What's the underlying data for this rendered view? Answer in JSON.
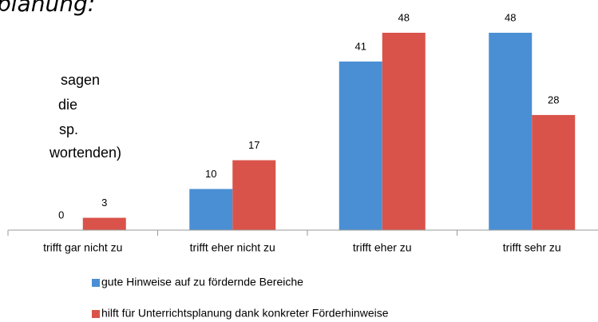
{
  "chart_data": {
    "type": "bar",
    "title": "planung:",
    "annotations": [
      "sagen",
      "die",
      "sp.",
      "wortenden)"
    ],
    "categories": [
      "trifft gar nicht zu",
      "trifft eher nicht zu",
      "trifft eher zu",
      "trifft sehr zu"
    ],
    "series": [
      {
        "name": "gute Hinweise auf zu fördernde Bereiche",
        "color": "#4a8fd4",
        "values": [
          0,
          10,
          41,
          48
        ]
      },
      {
        "name": "hilft für Unterrichtsplanung dank konkreter Förderhinweise",
        "color": "#d9534a",
        "values": [
          3,
          17,
          48,
          28
        ]
      }
    ]
  }
}
